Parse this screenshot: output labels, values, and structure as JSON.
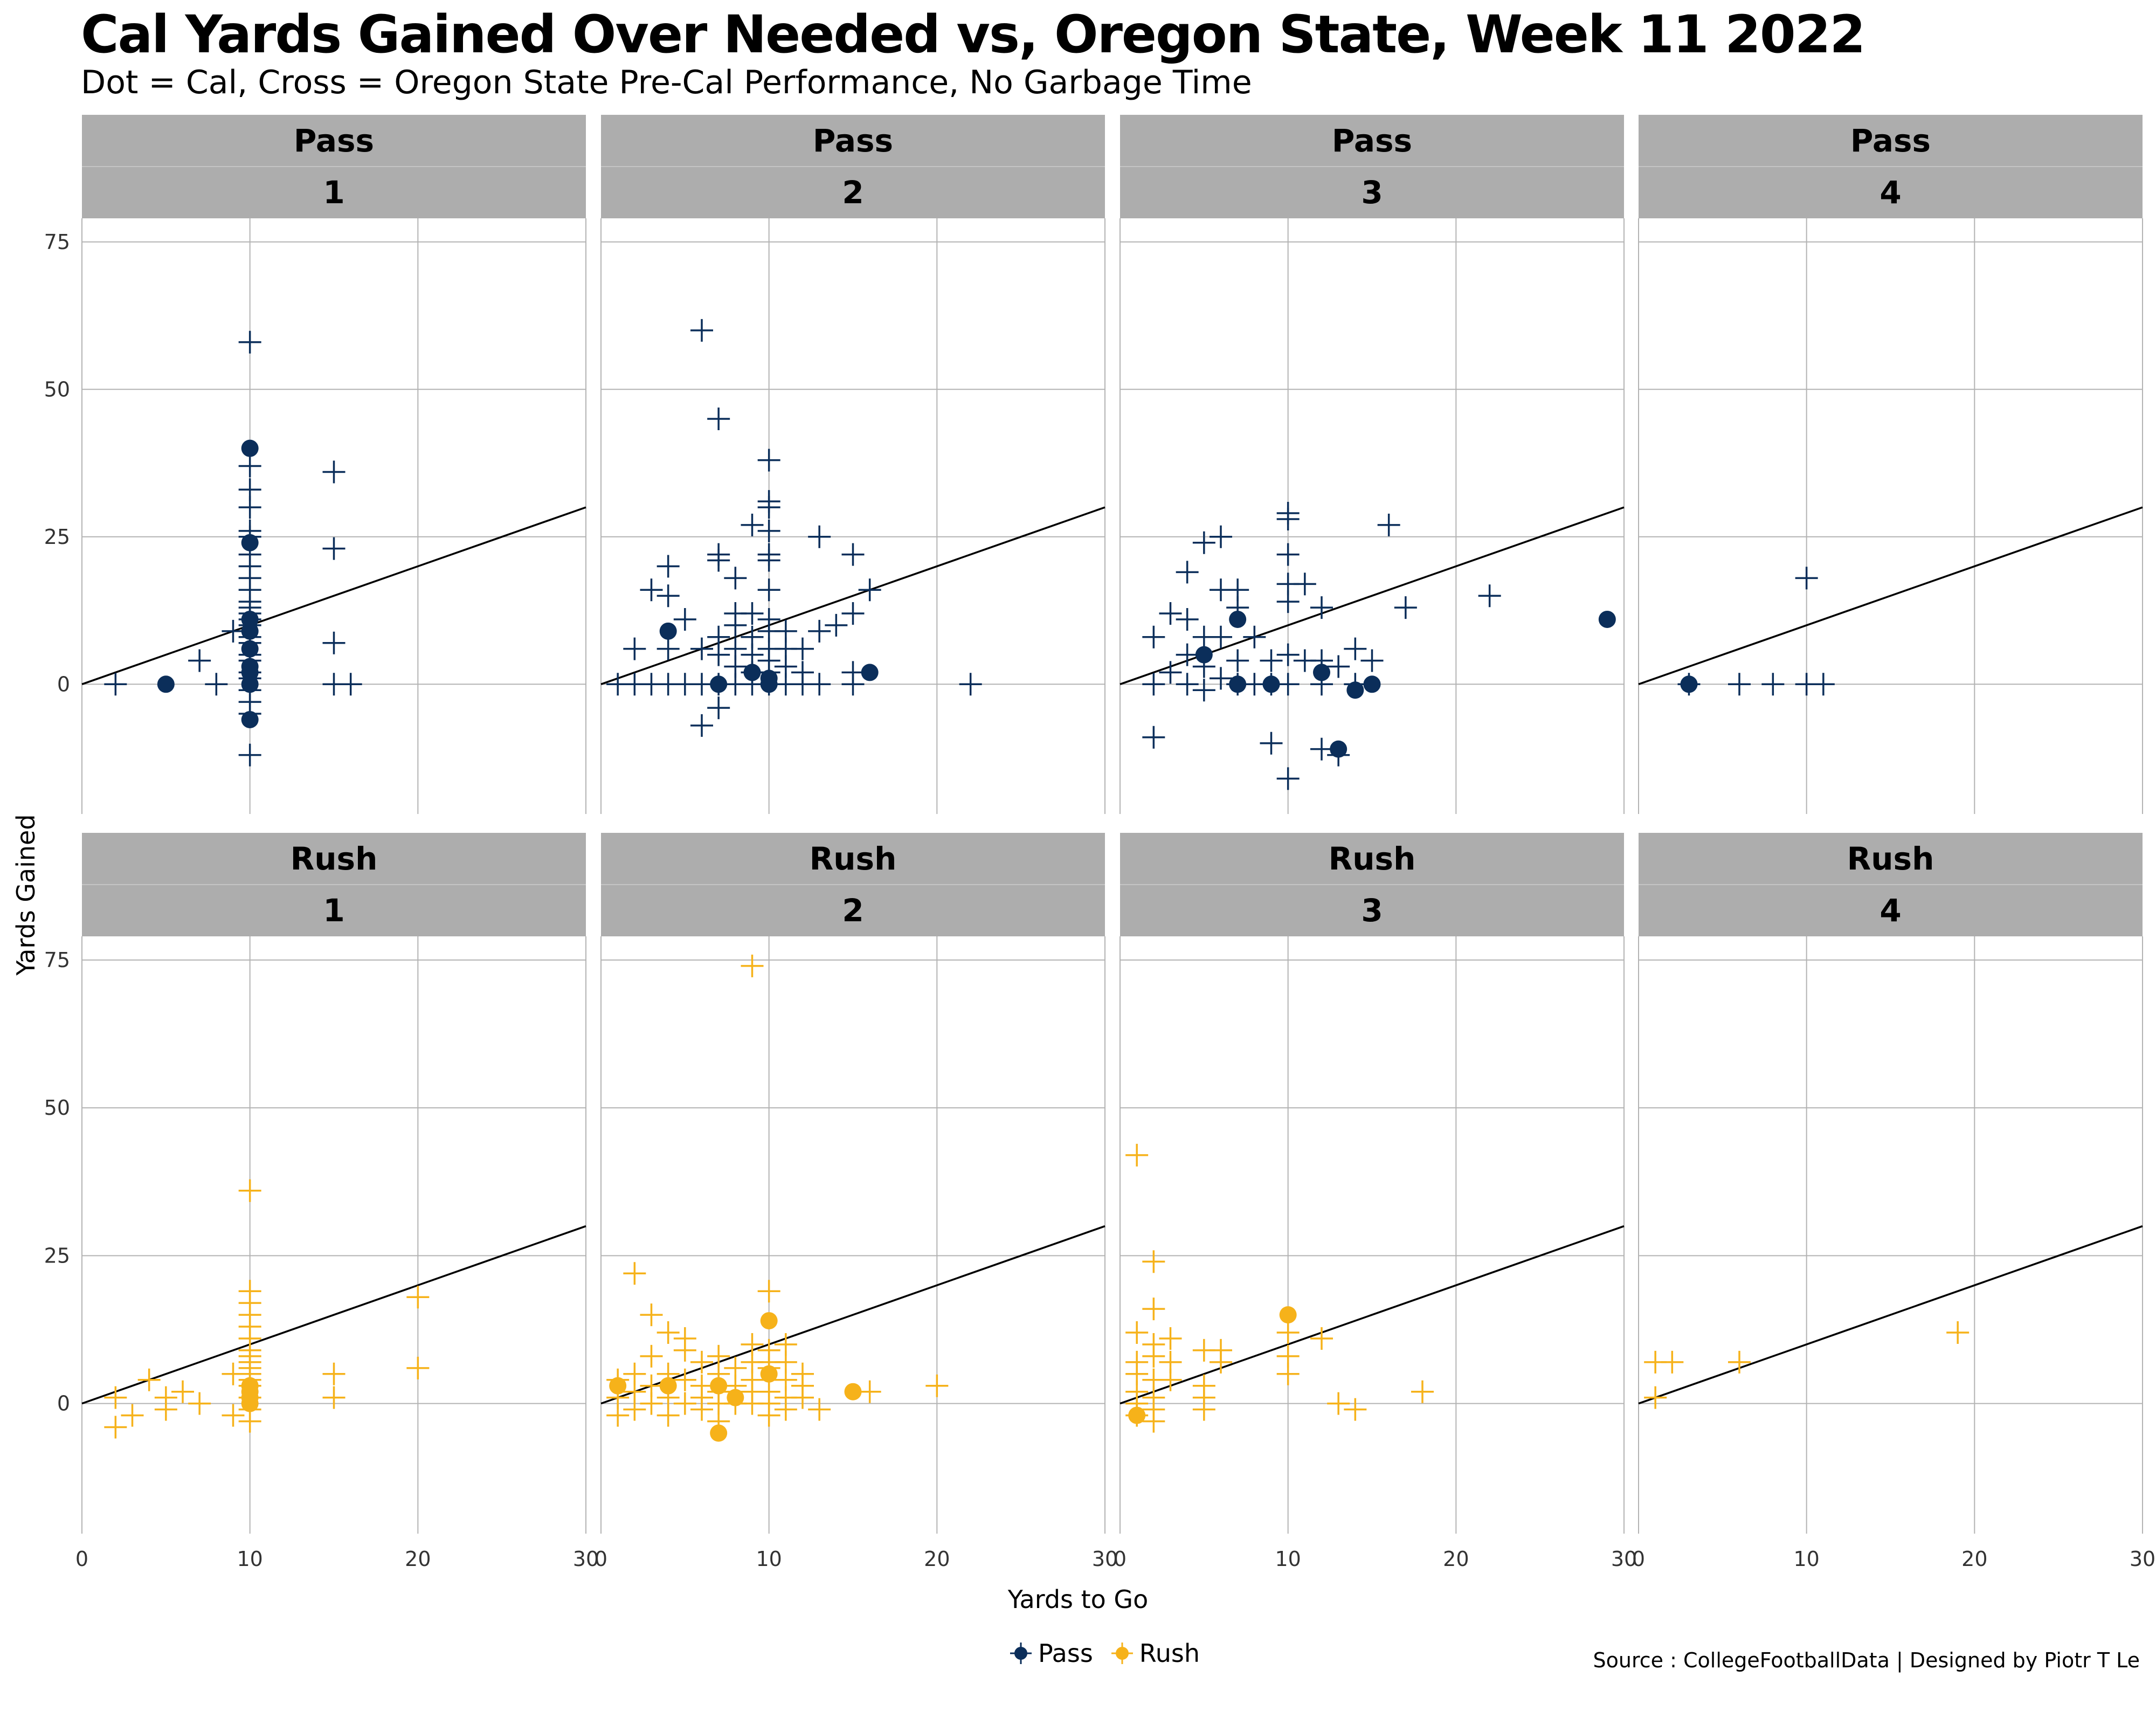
{
  "title": "Cal Yards Gained Over Needed vs, Oregon State, Week 11 2022",
  "subtitle": "Dot = Cal, Cross = Oregon State Pre-Cal Performance, No Garbage Time",
  "caption": "Source : CollegeFootballData | Designed by Piotr T Le",
  "colors": {
    "Pass": "#0b2e5a",
    "Rush": "#f6b21a",
    "strip_bg": "#adadad",
    "grid": "#b3b3b3",
    "line": "#000000"
  },
  "chart_data": {
    "type": "scatter",
    "title": "Cal Yards Gained Over Needed vs, Oregon State, Week 11 2022",
    "subtitle": "Dot = Cal, Cross = Oregon State Pre-Cal Performance, No Garbage Time",
    "xlabel": "Yards to Go",
    "ylabel": "Yards Gained",
    "xlim": [
      0,
      30
    ],
    "ylim": [
      -22,
      79
    ],
    "x_ticks": [
      0,
      10,
      20,
      30
    ],
    "y_ticks": [
      0,
      25,
      50,
      75
    ],
    "y_tick_labels": [
      "0",
      "25",
      "50",
      "75"
    ],
    "x_tick_labels": [
      "0",
      "10",
      "20",
      "30"
    ],
    "reference_line": "y = x",
    "grid": true,
    "legend_position": "bottom",
    "legend": [
      {
        "name": "Pass",
        "marker": "dot"
      },
      {
        "name": "Rush",
        "marker": "dot"
      }
    ],
    "facets": [
      {
        "type": "Pass",
        "down": "1",
        "cal": [
          [
            5,
            0
          ],
          [
            10,
            40
          ],
          [
            10,
            24
          ],
          [
            10,
            11
          ],
          [
            10,
            9
          ],
          [
            10,
            6
          ],
          [
            10,
            3
          ],
          [
            10,
            2
          ],
          [
            10,
            0
          ],
          [
            10,
            -6
          ]
        ],
        "opp": [
          [
            2,
            0
          ],
          [
            7,
            4
          ],
          [
            8,
            0
          ],
          [
            9,
            9
          ],
          [
            10,
            58
          ],
          [
            10,
            37
          ],
          [
            10,
            33
          ],
          [
            10,
            30
          ],
          [
            10,
            26
          ],
          [
            10,
            25
          ],
          [
            10,
            22
          ],
          [
            10,
            20
          ],
          [
            10,
            18
          ],
          [
            10,
            16
          ],
          [
            10,
            14
          ],
          [
            10,
            13
          ],
          [
            10,
            12
          ],
          [
            10,
            11
          ],
          [
            10,
            10
          ],
          [
            10,
            8
          ],
          [
            10,
            7
          ],
          [
            10,
            5
          ],
          [
            10,
            4
          ],
          [
            10,
            2
          ],
          [
            10,
            1
          ],
          [
            10,
            -1
          ],
          [
            10,
            -3
          ],
          [
            10,
            -5
          ],
          [
            10,
            -12
          ],
          [
            15,
            36
          ],
          [
            15,
            23
          ],
          [
            15,
            7
          ],
          [
            15,
            0
          ],
          [
            16,
            0
          ]
        ]
      },
      {
        "type": "Pass",
        "down": "2",
        "cal": [
          [
            4,
            9
          ],
          [
            7,
            0
          ],
          [
            9,
            2
          ],
          [
            10,
            1
          ],
          [
            10,
            0
          ],
          [
            16,
            2
          ]
        ],
        "opp": [
          [
            1,
            0
          ],
          [
            2,
            6
          ],
          [
            2,
            0
          ],
          [
            3,
            16
          ],
          [
            3,
            0
          ],
          [
            4,
            20
          ],
          [
            4,
            15
          ],
          [
            4,
            6
          ],
          [
            4,
            0
          ],
          [
            5,
            11
          ],
          [
            5,
            0
          ],
          [
            6,
            60
          ],
          [
            6,
            6
          ],
          [
            6,
            0
          ],
          [
            6,
            -7
          ],
          [
            7,
            45
          ],
          [
            7,
            22
          ],
          [
            7,
            21
          ],
          [
            7,
            8
          ],
          [
            7,
            5
          ],
          [
            7,
            0
          ],
          [
            7,
            -4
          ],
          [
            8,
            18
          ],
          [
            8,
            12
          ],
          [
            8,
            10
          ],
          [
            8,
            6
          ],
          [
            8,
            3
          ],
          [
            8,
            0
          ],
          [
            9,
            27
          ],
          [
            9,
            12
          ],
          [
            9,
            8
          ],
          [
            9,
            5
          ],
          [
            9,
            2
          ],
          [
            9,
            0
          ],
          [
            10,
            38
          ],
          [
            10,
            31
          ],
          [
            10,
            30
          ],
          [
            10,
            26
          ],
          [
            10,
            22
          ],
          [
            10,
            21
          ],
          [
            10,
            16
          ],
          [
            10,
            11
          ],
          [
            10,
            9
          ],
          [
            10,
            6
          ],
          [
            10,
            4
          ],
          [
            10,
            2
          ],
          [
            10,
            0
          ],
          [
            11,
            9
          ],
          [
            11,
            6
          ],
          [
            11,
            3
          ],
          [
            11,
            0
          ],
          [
            12,
            6
          ],
          [
            12,
            2
          ],
          [
            12,
            0
          ],
          [
            13,
            25
          ],
          [
            13,
            9
          ],
          [
            13,
            0
          ],
          [
            14,
            10
          ],
          [
            15,
            22
          ],
          [
            15,
            12
          ],
          [
            15,
            2
          ],
          [
            15,
            0
          ],
          [
            16,
            16
          ],
          [
            22,
            0
          ]
        ]
      },
      {
        "type": "Pass",
        "down": "3",
        "cal": [
          [
            5,
            5
          ],
          [
            7,
            11
          ],
          [
            7,
            0
          ],
          [
            9,
            0
          ],
          [
            12,
            2
          ],
          [
            13,
            -11
          ],
          [
            14,
            -1
          ],
          [
            15,
            0
          ],
          [
            29,
            11
          ]
        ],
        "opp": [
          [
            2,
            8
          ],
          [
            2,
            0
          ],
          [
            2,
            -9
          ],
          [
            3,
            12
          ],
          [
            3,
            2
          ],
          [
            4,
            19
          ],
          [
            4,
            11
          ],
          [
            4,
            5
          ],
          [
            4,
            0
          ],
          [
            5,
            24
          ],
          [
            5,
            8
          ],
          [
            5,
            3
          ],
          [
            5,
            -1
          ],
          [
            6,
            25
          ],
          [
            6,
            16
          ],
          [
            6,
            8
          ],
          [
            6,
            1
          ],
          [
            7,
            16
          ],
          [
            7,
            13
          ],
          [
            7,
            4
          ],
          [
            7,
            0
          ],
          [
            8,
            8
          ],
          [
            8,
            0
          ],
          [
            9,
            -10
          ],
          [
            9,
            4
          ],
          [
            9,
            0
          ],
          [
            10,
            29
          ],
          [
            10,
            28
          ],
          [
            10,
            22
          ],
          [
            10,
            17
          ],
          [
            10,
            14
          ],
          [
            10,
            5
          ],
          [
            10,
            0
          ],
          [
            10,
            -16
          ],
          [
            11,
            17
          ],
          [
            11,
            4
          ],
          [
            12,
            13
          ],
          [
            12,
            4
          ],
          [
            12,
            0
          ],
          [
            12,
            -11
          ],
          [
            13,
            -12
          ],
          [
            13,
            3
          ],
          [
            14,
            6
          ],
          [
            14,
            0
          ],
          [
            15,
            4
          ],
          [
            16,
            27
          ],
          [
            17,
            13
          ],
          [
            22,
            15
          ]
        ]
      },
      {
        "type": "Pass",
        "down": "4",
        "cal": [
          [
            3,
            0
          ]
        ],
        "opp": [
          [
            3,
            0
          ],
          [
            6,
            0
          ],
          [
            8,
            0
          ],
          [
            10,
            18
          ],
          [
            10,
            0
          ],
          [
            11,
            0
          ]
        ]
      },
      {
        "type": "Rush",
        "down": "1",
        "cal": [
          [
            10,
            3
          ],
          [
            10,
            2
          ],
          [
            10,
            1
          ],
          [
            10,
            0
          ]
        ],
        "opp": [
          [
            2,
            1
          ],
          [
            2,
            -4
          ],
          [
            3,
            -2
          ],
          [
            4,
            4
          ],
          [
            5,
            1
          ],
          [
            5,
            -1
          ],
          [
            6,
            2
          ],
          [
            7,
            0
          ],
          [
            9,
            5
          ],
          [
            9,
            -2
          ],
          [
            10,
            36
          ],
          [
            10,
            19
          ],
          [
            10,
            17
          ],
          [
            10,
            15
          ],
          [
            10,
            13
          ],
          [
            10,
            11
          ],
          [
            10,
            9
          ],
          [
            10,
            8
          ],
          [
            10,
            7
          ],
          [
            10,
            6
          ],
          [
            10,
            5
          ],
          [
            10,
            4
          ],
          [
            10,
            3
          ],
          [
            10,
            1
          ],
          [
            10,
            -1
          ],
          [
            10,
            -3
          ],
          [
            15,
            5
          ],
          [
            15,
            1
          ],
          [
            20,
            18
          ],
          [
            20,
            6
          ]
        ]
      },
      {
        "type": "Rush",
        "down": "2",
        "cal": [
          [
            1,
            3
          ],
          [
            4,
            3
          ],
          [
            7,
            3
          ],
          [
            7,
            -5
          ],
          [
            8,
            1
          ],
          [
            10,
            14
          ],
          [
            10,
            5
          ],
          [
            15,
            2
          ]
        ],
        "opp": [
          [
            1,
            4
          ],
          [
            1,
            1
          ],
          [
            1,
            -2
          ],
          [
            2,
            22
          ],
          [
            2,
            5
          ],
          [
            2,
            2
          ],
          [
            2,
            -1
          ],
          [
            3,
            15
          ],
          [
            3,
            8
          ],
          [
            3,
            3
          ],
          [
            3,
            0
          ],
          [
            4,
            12
          ],
          [
            4,
            5
          ],
          [
            4,
            1
          ],
          [
            4,
            -2
          ],
          [
            5,
            11
          ],
          [
            5,
            9
          ],
          [
            5,
            4
          ],
          [
            5,
            0
          ],
          [
            6,
            7
          ],
          [
            6,
            3
          ],
          [
            6,
            1
          ],
          [
            6,
            -1
          ],
          [
            7,
            8
          ],
          [
            7,
            5
          ],
          [
            7,
            2
          ],
          [
            7,
            0
          ],
          [
            7,
            -3
          ],
          [
            8,
            6
          ],
          [
            8,
            3
          ],
          [
            8,
            0
          ],
          [
            9,
            74
          ],
          [
            9,
            10
          ],
          [
            9,
            7
          ],
          [
            9,
            4
          ],
          [
            9,
            2
          ],
          [
            9,
            0
          ],
          [
            10,
            19
          ],
          [
            10,
            9
          ],
          [
            10,
            7
          ],
          [
            10,
            6
          ],
          [
            10,
            4
          ],
          [
            10,
            2
          ],
          [
            10,
            0
          ],
          [
            10,
            -2
          ],
          [
            11,
            10
          ],
          [
            11,
            7
          ],
          [
            11,
            4
          ],
          [
            11,
            1
          ],
          [
            11,
            -1
          ],
          [
            12,
            5
          ],
          [
            12,
            3
          ],
          [
            12,
            1
          ],
          [
            13,
            -1
          ],
          [
            16,
            2
          ],
          [
            20,
            3
          ]
        ]
      },
      {
        "type": "Rush",
        "down": "3",
        "cal": [
          [
            1,
            -2
          ],
          [
            10,
            15
          ]
        ],
        "opp": [
          [
            1,
            42
          ],
          [
            1,
            12
          ],
          [
            1,
            7
          ],
          [
            1,
            5
          ],
          [
            1,
            2
          ],
          [
            1,
            0
          ],
          [
            1,
            -2
          ],
          [
            2,
            24
          ],
          [
            2,
            16
          ],
          [
            2,
            10
          ],
          [
            2,
            8
          ],
          [
            2,
            4
          ],
          [
            2,
            1
          ],
          [
            2,
            -1
          ],
          [
            2,
            -3
          ],
          [
            3,
            11
          ],
          [
            3,
            7
          ],
          [
            3,
            4
          ],
          [
            5,
            9
          ],
          [
            5,
            3
          ],
          [
            5,
            1
          ],
          [
            5,
            -1
          ],
          [
            6,
            9
          ],
          [
            6,
            7
          ],
          [
            10,
            12
          ],
          [
            10,
            8
          ],
          [
            10,
            5
          ],
          [
            12,
            11
          ],
          [
            13,
            0
          ],
          [
            14,
            -1
          ],
          [
            18,
            2
          ]
        ]
      },
      {
        "type": "Rush",
        "down": "4",
        "cal": [],
        "opp": [
          [
            1,
            7
          ],
          [
            1,
            1
          ],
          [
            2,
            7
          ],
          [
            6,
            7
          ],
          [
            19,
            12
          ]
        ]
      }
    ]
  }
}
